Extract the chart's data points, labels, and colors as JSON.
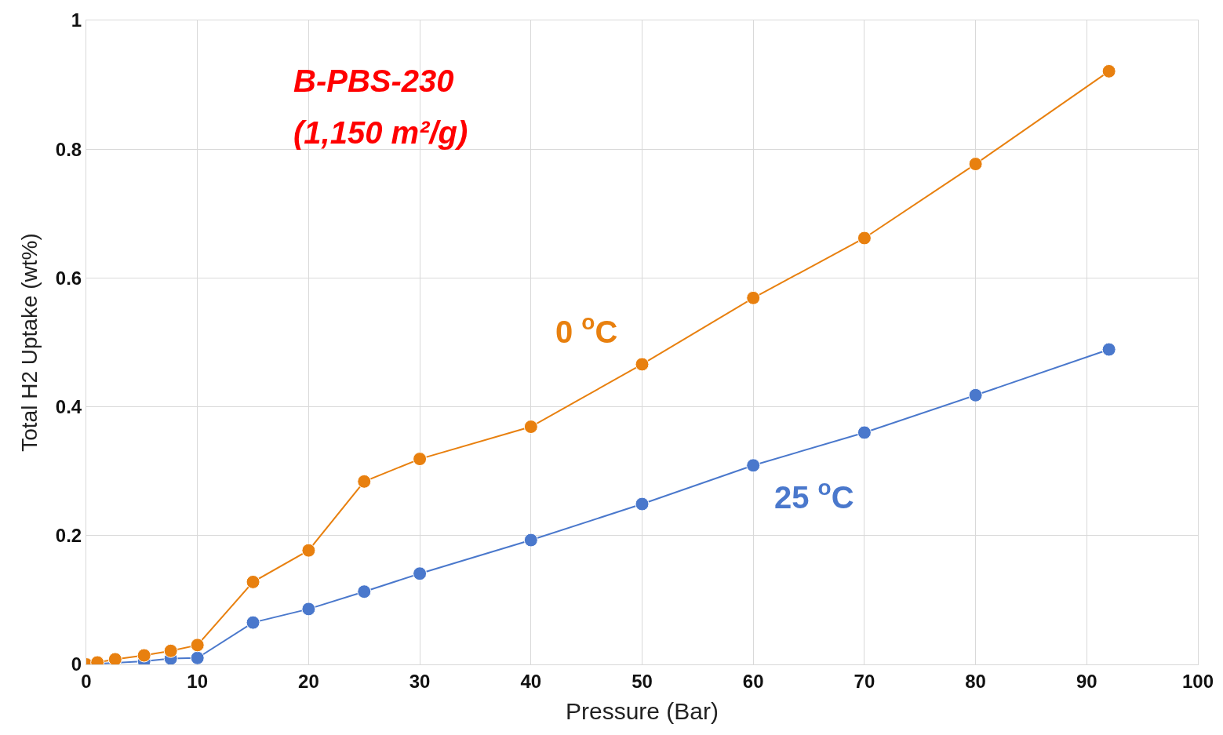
{
  "chart_data": {
    "type": "line",
    "xlabel": "Pressure (Bar)",
    "ylabel": "Total H2 Uptake (wt%)",
    "annotations": [
      "B-PBS-230",
      "(1,150 m²/g)"
    ],
    "x": [
      0,
      1,
      2.6,
      5.2,
      7.6,
      10,
      15,
      20,
      25,
      30,
      40,
      50,
      60,
      70,
      80,
      92
    ],
    "series": [
      {
        "name": "0 $^{o}$C",
        "color": "#e8800f",
        "values": [
          0,
          0.003,
          0.008,
          0.014,
          0.021,
          0.03,
          0.128,
          0.177,
          0.284,
          0.319,
          0.369,
          0.466,
          0.569,
          0.662,
          0.777,
          0.921
        ]
      },
      {
        "name": "25 $^{o}$C",
        "color": "#4a78cc",
        "values": [
          null,
          0.001,
          null,
          0.005,
          0.009,
          0.01,
          0.065,
          0.086,
          0.113,
          0.141,
          0.193,
          0.249,
          0.309,
          0.36,
          0.418,
          0.489
        ]
      }
    ],
    "xlim": [
      0,
      100
    ],
    "ylim": [
      0,
      1
    ],
    "xticks": [
      0,
      10,
      20,
      30,
      40,
      50,
      60,
      70,
      80,
      90,
      100
    ],
    "yticks": [
      0,
      0.2,
      0.4,
      0.6,
      0.8,
      1
    ],
    "grid": true,
    "legend": false,
    "marker": "circle",
    "line_style": "solid"
  }
}
